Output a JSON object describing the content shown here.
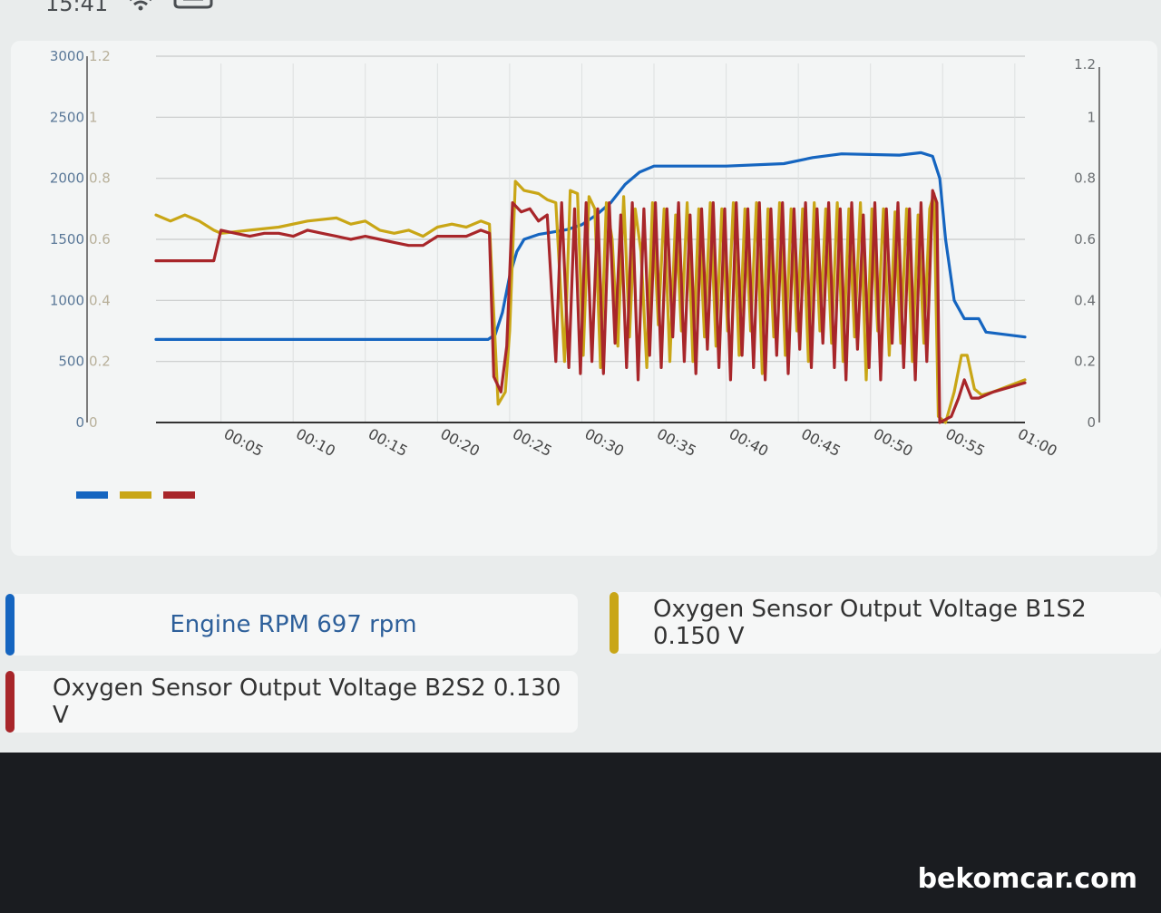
{
  "statusbar": {
    "time": "15:41"
  },
  "colors": {
    "rpm": "#1565c0",
    "b1s2": "#c9a616",
    "b2s2": "#a8262a",
    "grid": "#c8cbcb",
    "axis": "#555555",
    "tick": "#6b6f72"
  },
  "chart_data": {
    "type": "line",
    "x": [
      "00:05",
      "00:10",
      "00:15",
      "00:20",
      "00:25",
      "00:30",
      "00:35",
      "00:40",
      "00:45",
      "00:50",
      "00:55",
      "01:00"
    ],
    "x_range_seconds": [
      0.5,
      60.7
    ],
    "y_left_rpm": {
      "ticks": [
        "0",
        "500",
        "1000",
        "1500",
        "2000",
        "2500",
        "3000"
      ],
      "ylim": [
        0,
        3000
      ]
    },
    "y_left_volt": {
      "ticks": [
        "0",
        "0.2",
        "0.4",
        "0.6",
        "0.8",
        "1",
        "1.2"
      ],
      "ylim": [
        0,
        1.2
      ]
    },
    "y_right_volt": {
      "ticks": [
        "0",
        "0.2",
        "0.4",
        "0.6",
        "0.8",
        "1",
        "1.2"
      ],
      "ylim": [
        0,
        1.2
      ]
    },
    "series": [
      {
        "name": "Engine RPM",
        "color_key": "rpm",
        "axis": "rpm",
        "points": [
          [
            0.5,
            680
          ],
          [
            23.5,
            680
          ],
          [
            24,
            720
          ],
          [
            24.5,
            900
          ],
          [
            25,
            1200
          ],
          [
            25.5,
            1400
          ],
          [
            26,
            1500
          ],
          [
            27,
            1540
          ],
          [
            28,
            1560
          ],
          [
            29,
            1580
          ],
          [
            30,
            1620
          ],
          [
            31,
            1700
          ],
          [
            32,
            1800
          ],
          [
            33,
            1950
          ],
          [
            34,
            2050
          ],
          [
            35,
            2100
          ],
          [
            40,
            2100
          ],
          [
            44,
            2120
          ],
          [
            46,
            2170
          ],
          [
            48,
            2200
          ],
          [
            52,
            2190
          ],
          [
            53.5,
            2210
          ],
          [
            54.3,
            2180
          ],
          [
            54.8,
            2000
          ],
          [
            55.2,
            1500
          ],
          [
            55.8,
            1000
          ],
          [
            56.5,
            850
          ],
          [
            57.5,
            850
          ],
          [
            58,
            740
          ],
          [
            60.7,
            700
          ]
        ]
      },
      {
        "name": "Oxygen Sensor Output Voltage B1S2",
        "color_key": "b1s2",
        "axis": "volt",
        "points": [
          [
            0.5,
            0.68
          ],
          [
            1.5,
            0.66
          ],
          [
            2.5,
            0.68
          ],
          [
            3.5,
            0.66
          ],
          [
            4.5,
            0.63
          ],
          [
            5,
            0.62
          ],
          [
            7,
            0.63
          ],
          [
            9,
            0.64
          ],
          [
            11,
            0.66
          ],
          [
            13,
            0.67
          ],
          [
            14,
            0.65
          ],
          [
            15,
            0.66
          ],
          [
            16,
            0.63
          ],
          [
            17,
            0.62
          ],
          [
            18,
            0.63
          ],
          [
            19,
            0.61
          ],
          [
            20,
            0.64
          ],
          [
            21,
            0.65
          ],
          [
            22,
            0.64
          ],
          [
            23,
            0.66
          ],
          [
            23.6,
            0.65
          ],
          [
            24.2,
            0.06
          ],
          [
            24.7,
            0.1
          ],
          [
            25,
            0.3
          ],
          [
            25.4,
            0.79
          ],
          [
            26,
            0.76
          ],
          [
            27,
            0.75
          ],
          [
            27.6,
            0.73
          ],
          [
            28.2,
            0.72
          ],
          [
            28.8,
            0.2
          ],
          [
            29.2,
            0.76
          ],
          [
            29.7,
            0.75
          ],
          [
            30.1,
            0.22
          ],
          [
            30.5,
            0.74
          ],
          [
            30.9,
            0.7
          ],
          [
            31.3,
            0.18
          ],
          [
            31.7,
            0.72
          ],
          [
            32.1,
            0.6
          ],
          [
            32.5,
            0.25
          ],
          [
            32.9,
            0.74
          ],
          [
            33.3,
            0.28
          ],
          [
            33.7,
            0.7
          ],
          [
            34.1,
            0.56
          ],
          [
            34.5,
            0.18
          ],
          [
            34.9,
            0.72
          ],
          [
            35.3,
            0.32
          ],
          [
            35.7,
            0.7
          ],
          [
            36.1,
            0.2
          ],
          [
            36.5,
            0.68
          ],
          [
            36.9,
            0.3
          ],
          [
            37.3,
            0.72
          ],
          [
            37.7,
            0.2
          ],
          [
            38.1,
            0.7
          ],
          [
            38.5,
            0.28
          ],
          [
            38.9,
            0.72
          ],
          [
            39.3,
            0.25
          ],
          [
            39.7,
            0.7
          ],
          [
            40.1,
            0.3
          ],
          [
            40.5,
            0.72
          ],
          [
            40.9,
            0.22
          ],
          [
            41.3,
            0.7
          ],
          [
            41.7,
            0.3
          ],
          [
            42.1,
            0.72
          ],
          [
            42.5,
            0.16
          ],
          [
            42.9,
            0.7
          ],
          [
            43.3,
            0.28
          ],
          [
            43.7,
            0.72
          ],
          [
            44.1,
            0.22
          ],
          [
            44.5,
            0.7
          ],
          [
            44.9,
            0.3
          ],
          [
            45.3,
            0.7
          ],
          [
            45.7,
            0.2
          ],
          [
            46.1,
            0.72
          ],
          [
            46.5,
            0.3
          ],
          [
            46.9,
            0.7
          ],
          [
            47.3,
            0.26
          ],
          [
            47.7,
            0.72
          ],
          [
            48.1,
            0.2
          ],
          [
            48.5,
            0.7
          ],
          [
            48.9,
            0.28
          ],
          [
            49.3,
            0.72
          ],
          [
            49.7,
            0.14
          ],
          [
            50.1,
            0.7
          ],
          [
            50.5,
            0.3
          ],
          [
            50.9,
            0.7
          ],
          [
            51.3,
            0.22
          ],
          [
            51.7,
            0.69
          ],
          [
            52.1,
            0.26
          ],
          [
            52.5,
            0.7
          ],
          [
            52.9,
            0.2
          ],
          [
            53.3,
            0.68
          ],
          [
            53.7,
            0.26
          ],
          [
            54.1,
            0.7
          ],
          [
            54.4,
            0.75
          ],
          [
            54.7,
            0.02
          ],
          [
            55.2,
            0.0
          ],
          [
            55.8,
            0.1
          ],
          [
            56.3,
            0.22
          ],
          [
            56.7,
            0.22
          ],
          [
            57.2,
            0.11
          ],
          [
            57.7,
            0.09
          ],
          [
            58.5,
            0.1
          ],
          [
            60.7,
            0.14
          ]
        ]
      },
      {
        "name": "Oxygen Sensor Output Voltage B2S2",
        "color_key": "b2s2",
        "axis": "volt",
        "points": [
          [
            0.5,
            0.53
          ],
          [
            2,
            0.53
          ],
          [
            3.5,
            0.53
          ],
          [
            4.5,
            0.53
          ],
          [
            5,
            0.63
          ],
          [
            6,
            0.62
          ],
          [
            7,
            0.61
          ],
          [
            8,
            0.62
          ],
          [
            9,
            0.62
          ],
          [
            10,
            0.61
          ],
          [
            11,
            0.63
          ],
          [
            12,
            0.62
          ],
          [
            13,
            0.61
          ],
          [
            14,
            0.6
          ],
          [
            15,
            0.61
          ],
          [
            16,
            0.6
          ],
          [
            17,
            0.59
          ],
          [
            18,
            0.58
          ],
          [
            19,
            0.58
          ],
          [
            20,
            0.61
          ],
          [
            21,
            0.61
          ],
          [
            22,
            0.61
          ],
          [
            23,
            0.63
          ],
          [
            23.6,
            0.62
          ],
          [
            23.9,
            0.15
          ],
          [
            24.4,
            0.1
          ],
          [
            24.8,
            0.25
          ],
          [
            25.2,
            0.72
          ],
          [
            25.8,
            0.69
          ],
          [
            26.4,
            0.7
          ],
          [
            27,
            0.66
          ],
          [
            27.6,
            0.68
          ],
          [
            28.2,
            0.2
          ],
          [
            28.6,
            0.72
          ],
          [
            29.1,
            0.18
          ],
          [
            29.5,
            0.7
          ],
          [
            29.9,
            0.16
          ],
          [
            30.3,
            0.72
          ],
          [
            30.7,
            0.2
          ],
          [
            31.1,
            0.7
          ],
          [
            31.5,
            0.16
          ],
          [
            31.9,
            0.72
          ],
          [
            32.3,
            0.26
          ],
          [
            32.7,
            0.68
          ],
          [
            33.1,
            0.18
          ],
          [
            33.5,
            0.72
          ],
          [
            33.9,
            0.14
          ],
          [
            34.3,
            0.7
          ],
          [
            34.7,
            0.22
          ],
          [
            35.1,
            0.72
          ],
          [
            35.5,
            0.18
          ],
          [
            35.9,
            0.7
          ],
          [
            36.3,
            0.28
          ],
          [
            36.7,
            0.72
          ],
          [
            37.1,
            0.2
          ],
          [
            37.5,
            0.68
          ],
          [
            37.9,
            0.16
          ],
          [
            38.3,
            0.7
          ],
          [
            38.7,
            0.24
          ],
          [
            39.1,
            0.72
          ],
          [
            39.5,
            0.18
          ],
          [
            39.9,
            0.7
          ],
          [
            40.3,
            0.14
          ],
          [
            40.7,
            0.72
          ],
          [
            41.1,
            0.22
          ],
          [
            41.5,
            0.7
          ],
          [
            41.9,
            0.18
          ],
          [
            42.3,
            0.72
          ],
          [
            42.7,
            0.14
          ],
          [
            43.1,
            0.7
          ],
          [
            43.5,
            0.22
          ],
          [
            43.9,
            0.72
          ],
          [
            44.3,
            0.16
          ],
          [
            44.7,
            0.7
          ],
          [
            45.1,
            0.24
          ],
          [
            45.5,
            0.72
          ],
          [
            45.9,
            0.18
          ],
          [
            46.3,
            0.7
          ],
          [
            46.7,
            0.26
          ],
          [
            47.1,
            0.72
          ],
          [
            47.5,
            0.18
          ],
          [
            47.9,
            0.7
          ],
          [
            48.3,
            0.14
          ],
          [
            48.7,
            0.72
          ],
          [
            49.1,
            0.24
          ],
          [
            49.5,
            0.68
          ],
          [
            49.9,
            0.18
          ],
          [
            50.3,
            0.72
          ],
          [
            50.7,
            0.14
          ],
          [
            51.1,
            0.7
          ],
          [
            51.5,
            0.26
          ],
          [
            51.9,
            0.72
          ],
          [
            52.3,
            0.18
          ],
          [
            52.7,
            0.7
          ],
          [
            53.1,
            0.14
          ],
          [
            53.5,
            0.72
          ],
          [
            53.9,
            0.2
          ],
          [
            54.3,
            0.76
          ],
          [
            54.6,
            0.72
          ],
          [
            54.8,
            0.0
          ],
          [
            55.6,
            0.02
          ],
          [
            56.1,
            0.08
          ],
          [
            56.5,
            0.14
          ],
          [
            57,
            0.08
          ],
          [
            57.5,
            0.08
          ],
          [
            58.5,
            0.1
          ],
          [
            60.7,
            0.13
          ]
        ]
      }
    ]
  },
  "params": [
    {
      "label": "Engine RPM 697 rpm",
      "color_key": "rpm"
    },
    {
      "label": "Oxygen Sensor Output Voltage B1S2 0.150 V",
      "color_key": "b1s2"
    },
    {
      "label": "Oxygen Sensor Output Voltage B2S2 0.130 V",
      "color_key": "b2s2"
    }
  ],
  "watermark": "bekomcar.com"
}
